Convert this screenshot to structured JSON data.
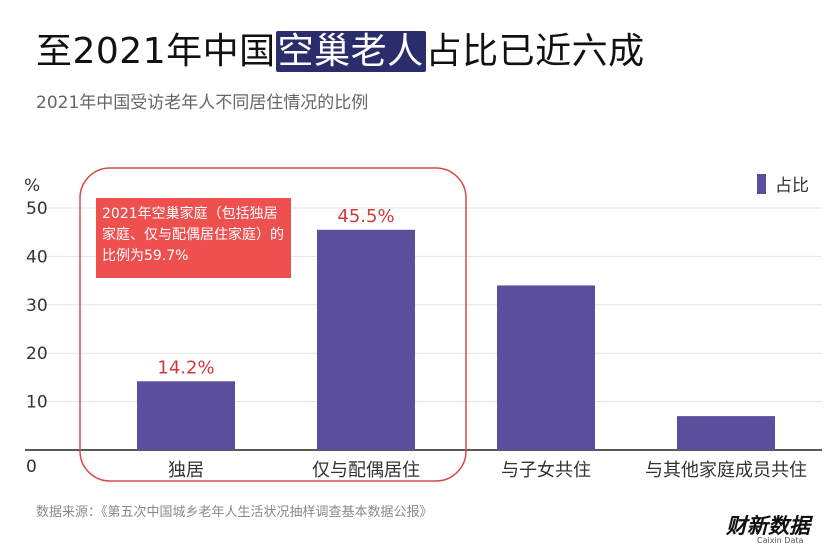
{
  "header": {
    "title_prefix": "至2021年中国",
    "title_highlight": "空巢老人",
    "title_suffix": "占比已近六成",
    "subtitle": "2021年中国受访老年人不同居住情况的比例"
  },
  "callout": {
    "text": "2021年空巢家庭（包括独居家庭、仅与配偶居住家庭）的比例为59.7%"
  },
  "footer": {
    "source": "数据来源：《第五次中国城乡老年人生活状况抽样调查基本数据公报》",
    "logo_text": "财新数据",
    "logo_sub": "Caixin Data"
  },
  "colors": {
    "bar": "#5b4e9c",
    "label": "#d23a3a",
    "highlight_bg": "#2b2c6c",
    "callout_bg": "#ee4f4f",
    "circle": "#d94a4a"
  },
  "chart_data": {
    "type": "bar",
    "categories": [
      "独居",
      "仅与配偶居住",
      "与子女共住",
      "与其他家庭成员共住"
    ],
    "values": [
      14.2,
      45.5,
      34.0,
      7.0
    ],
    "data_labels": [
      "14.2%",
      "45.5%",
      "",
      ""
    ],
    "legend": [
      "占比"
    ],
    "legend_position": "top-right",
    "ylabel": "%",
    "ylim": [
      0,
      50
    ],
    "yticks": [
      0,
      10,
      20,
      30,
      40,
      50
    ],
    "grid": true
  }
}
